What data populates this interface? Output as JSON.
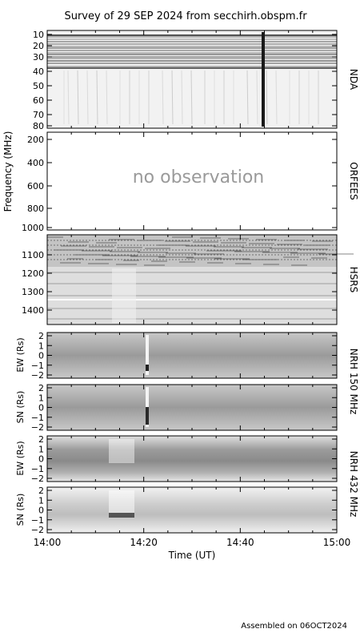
{
  "chart_data": {
    "type": "heatmap",
    "title": "Survey of 29 SEP 2024 from secchirh.obspm.fr",
    "footer": "Assembled on 06OCT2024",
    "xlabel": "Time (UT)",
    "x_ticks": [
      "14:00",
      "14:20",
      "14:40",
      "15:00"
    ],
    "x_range": [
      "14:00",
      "15:00"
    ],
    "freq_axis_label": "Frequency (MHz)",
    "panels": [
      {
        "id": "nda",
        "right_label": "NDA",
        "ylabel": "",
        "y_ticks": [
          "10",
          "20",
          "30",
          "40",
          "50",
          "60",
          "70",
          "80"
        ],
        "y_range": [
          10,
          80
        ],
        "status": "",
        "burst_time": "14:45"
      },
      {
        "id": "orfees",
        "right_label": "ORFEES",
        "ylabel": "",
        "y_ticks": [
          "200",
          "400",
          "600",
          "800",
          "1000"
        ],
        "y_range": [
          150,
          1000
        ],
        "status": "no observation"
      },
      {
        "id": "hsrs",
        "right_label": "HSRS",
        "ylabel": "",
        "y_ticks": [
          "1100",
          "1200",
          "1300",
          "1400"
        ],
        "y_range": [
          1000,
          1480
        ],
        "status": ""
      },
      {
        "id": "nrh150ew",
        "right_label": "",
        "ylabel": "EW (Rs)",
        "y_ticks": [
          "2",
          "1",
          "0",
          "−1",
          "−2"
        ],
        "y_range": [
          -2,
          2
        ],
        "status": "",
        "burst_time": "14:21"
      },
      {
        "id": "nrh150sn",
        "right_label": "",
        "ylabel": "SN (Rs)",
        "y_ticks": [
          "2",
          "1",
          "0",
          "−1",
          "−2"
        ],
        "y_range": [
          -2,
          2
        ],
        "status": "",
        "burst_time": "14:21"
      },
      {
        "id": "nrh432ew",
        "right_label": "",
        "ylabel": "EW (Rs)",
        "y_ticks": [
          "2",
          "1",
          "0",
          "−1",
          "−2"
        ],
        "y_range": [
          -2,
          2
        ],
        "status": ""
      },
      {
        "id": "nrh432sn",
        "right_label": "",
        "ylabel": "SN (Rs)",
        "y_ticks": [
          "2",
          "1",
          "0",
          "−1",
          "−2"
        ],
        "y_range": [
          -2,
          2
        ],
        "status": ""
      }
    ],
    "nrh_labels": [
      "NRH 150 MHz",
      "NRH 432 MHz"
    ]
  }
}
